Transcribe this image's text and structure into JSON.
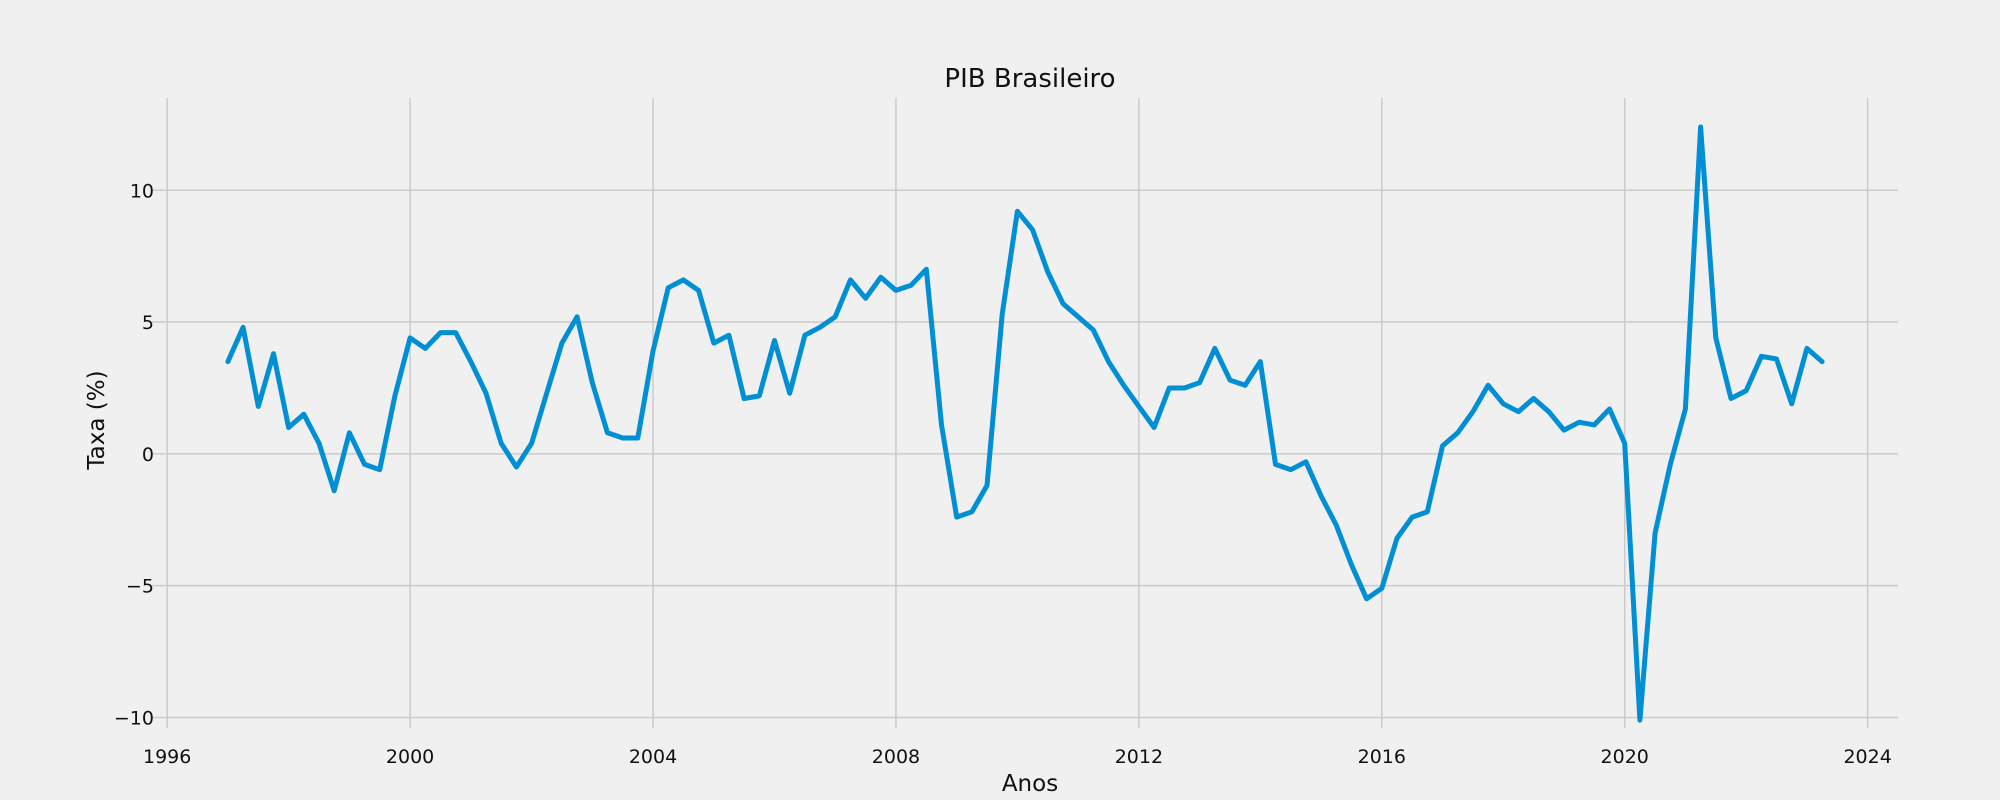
{
  "chart_data": {
    "type": "line",
    "title": "PIB Brasileiro",
    "xlabel": "Anos",
    "ylabel": "Taxa (%)",
    "xlim": [
      1995.75,
      2024.5
    ],
    "ylim": [
      -10.4,
      13.5
    ],
    "xticks": [
      1996,
      2000,
      2004,
      2008,
      2012,
      2016,
      2020,
      2024
    ],
    "yticks": [
      -10,
      -5,
      0,
      5,
      10
    ],
    "ytick_labels": [
      "−10",
      "−5",
      "0",
      "5",
      "10"
    ],
    "grid": true,
    "line_color": "#008fd5",
    "series": [
      {
        "x": [
          1997.0,
          1997.25,
          1997.5,
          1997.75,
          1998.0,
          1998.25,
          1998.5,
          1998.75,
          1999.0,
          1999.25,
          1999.5,
          1999.75,
          2000.0,
          2000.25,
          2000.5,
          2000.75,
          2001.0,
          2001.25,
          2001.5,
          2001.75,
          2002.0,
          2002.25,
          2002.5,
          2002.75,
          2003.0,
          2003.25,
          2003.5,
          2003.75,
          2004.0,
          2004.25,
          2004.5,
          2004.75,
          2005.0,
          2005.25,
          2005.5,
          2005.75,
          2006.0,
          2006.25,
          2006.5,
          2006.75,
          2007.0,
          2007.25,
          2007.5,
          2007.75,
          2008.0,
          2008.25,
          2008.5,
          2008.75,
          2009.0,
          2009.25,
          2009.5,
          2009.75,
          2010.0,
          2010.25,
          2010.5,
          2010.75,
          2011.0,
          2011.25,
          2011.5,
          2011.75,
          2012.0,
          2012.25,
          2012.5,
          2012.75,
          2013.0,
          2013.25,
          2013.5,
          2013.75,
          2014.0,
          2014.25,
          2014.5,
          2014.75,
          2015.0,
          2015.25,
          2015.5,
          2015.75,
          2016.0,
          2016.25,
          2016.5,
          2016.75,
          2017.0,
          2017.25,
          2017.5,
          2017.75,
          2018.0,
          2018.25,
          2018.5,
          2018.75,
          2019.0,
          2019.25,
          2019.5,
          2019.75,
          2020.0,
          2020.25,
          2020.5,
          2020.75,
          2021.0,
          2021.25,
          2021.5,
          2021.75,
          2022.0,
          2022.25,
          2022.5,
          2022.75,
          2023.0,
          2023.25
        ],
        "y": [
          3.5,
          4.8,
          1.8,
          3.8,
          1.0,
          1.5,
          0.4,
          -1.4,
          0.8,
          -0.4,
          -0.6,
          2.2,
          4.4,
          4.0,
          4.6,
          4.6,
          3.5,
          2.3,
          0.4,
          -0.5,
          0.4,
          2.3,
          4.2,
          5.2,
          2.7,
          0.8,
          0.6,
          0.6,
          3.9,
          6.3,
          6.6,
          6.2,
          4.2,
          4.5,
          2.1,
          2.2,
          4.3,
          2.3,
          4.5,
          4.8,
          5.2,
          6.6,
          5.9,
          6.7,
          6.2,
          6.4,
          7.0,
          1.1,
          -2.4,
          -2.2,
          -1.2,
          5.3,
          9.2,
          8.5,
          6.9,
          5.7,
          5.2,
          4.7,
          3.5,
          2.6,
          1.8,
          1.0,
          2.5,
          2.5,
          2.7,
          4.0,
          2.8,
          2.6,
          3.5,
          -0.4,
          -0.6,
          -0.3,
          -1.6,
          -2.7,
          -4.2,
          -5.5,
          -5.1,
          -3.2,
          -2.4,
          -2.2,
          0.3,
          0.8,
          1.6,
          2.6,
          1.9,
          1.6,
          2.1,
          1.6,
          0.9,
          1.2,
          1.1,
          1.7,
          0.4,
          -10.1,
          -3.0,
          -0.4,
          1.7,
          12.4,
          4.4,
          2.1,
          2.4,
          3.7,
          3.6,
          1.9,
          4.0,
          3.5
        ]
      }
    ]
  }
}
